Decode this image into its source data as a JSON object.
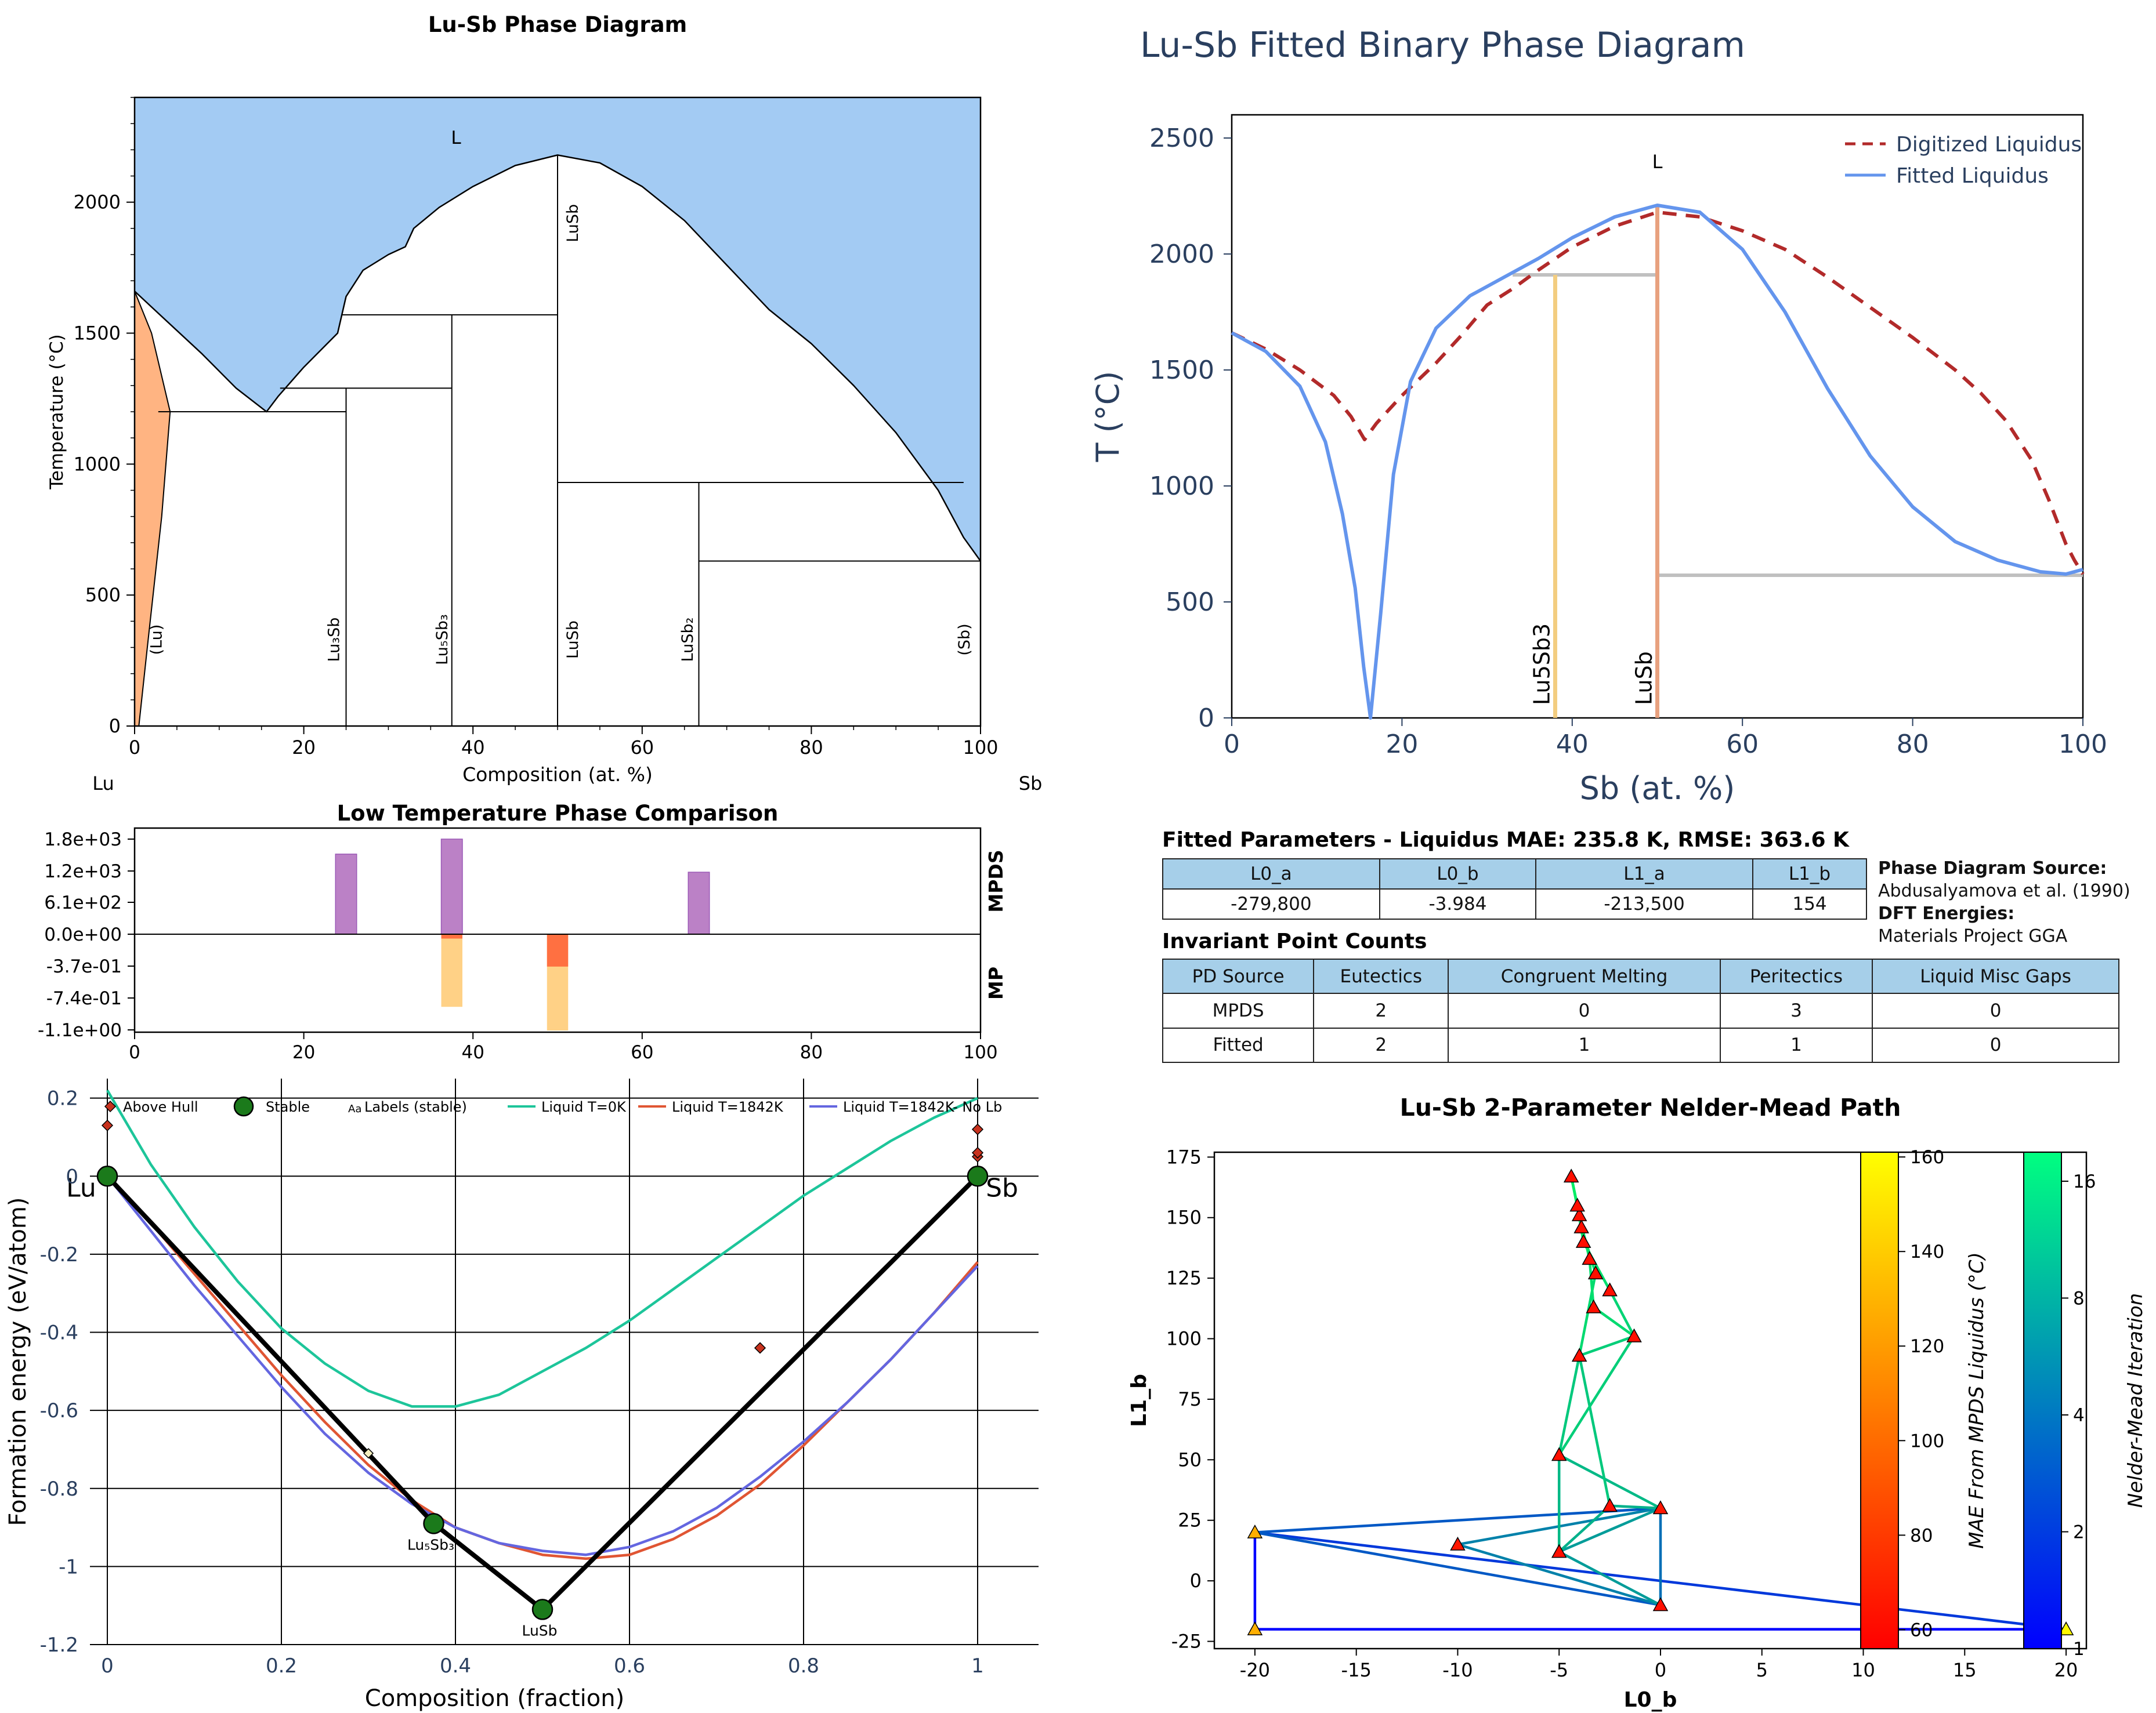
{
  "chart_data": [
    {
      "id": "phase_diagram",
      "type": "diagram",
      "title": "Lu-Sb Phase Diagram",
      "xlabel": "Composition (at. %)",
      "ylabel": "Temperature (°C)",
      "xlim": [
        0,
        100
      ],
      "ylim": [
        0,
        2400
      ],
      "x_ticks": [
        0,
        20,
        40,
        60,
        80,
        100
      ],
      "y_ticks": [
        0,
        500,
        1000,
        1500,
        2000
      ],
      "left_element": "Lu",
      "right_element": "Sb",
      "liquid_label": "L",
      "liquid_color": "#a3cbf3",
      "solid_solution_color": "#ffb482",
      "liquidus": [
        [
          0,
          1660
        ],
        [
          4,
          1540
        ],
        [
          8,
          1420
        ],
        [
          12,
          1290
        ],
        [
          15.6,
          1200
        ],
        [
          17,
          1260
        ],
        [
          20,
          1370
        ],
        [
          24,
          1500
        ],
        [
          24.5,
          1570
        ],
        [
          25,
          1640
        ],
        [
          27,
          1740
        ],
        [
          30,
          1800
        ],
        [
          32,
          1830
        ],
        [
          33,
          1900
        ],
        [
          36,
          1980
        ],
        [
          40,
          2060
        ],
        [
          45,
          2140
        ],
        [
          50,
          2180
        ],
        [
          55,
          2150
        ],
        [
          60,
          2060
        ],
        [
          65,
          1930
        ],
        [
          70,
          1760
        ],
        [
          75,
          1590
        ],
        [
          80,
          1460
        ],
        [
          85,
          1300
        ],
        [
          90,
          1120
        ],
        [
          95,
          900
        ],
        [
          98,
          720
        ],
        [
          100,
          630
        ]
      ],
      "phase_labels": [
        {
          "text": "(Lu)",
          "x": 2.5,
          "y": 330
        },
        {
          "text": "Lu3Sb",
          "x": 23.5,
          "y": 330
        },
        {
          "text": "Lu5Sb3",
          "x": 36.3,
          "y": 330
        },
        {
          "text": "LuSb",
          "x": 51.7,
          "y": 330
        },
        {
          "text": "LuSb2",
          "x": 65.3,
          "y": 330
        },
        {
          "text": "(Sb)",
          "x": 98,
          "y": 330
        },
        {
          "text": "LuSb",
          "x": 51.7,
          "y": 1920
        }
      ],
      "lines": {
        "verticals": [
          [
            25,
            0,
            1290
          ],
          [
            37.5,
            0,
            1570
          ],
          [
            50,
            0,
            2180
          ],
          [
            66.7,
            0,
            930
          ]
        ],
        "horizontals": [
          [
            2.8,
            25,
            1200
          ],
          [
            17.2,
            37.5,
            1290
          ],
          [
            24.5,
            50,
            1570
          ],
          [
            50,
            98,
            930
          ],
          [
            66.7,
            100,
            630
          ]
        ]
      }
    },
    {
      "id": "fitted_phase_diagram",
      "type": "line",
      "title": "Lu-Sb Fitted Binary Phase Diagram",
      "xlabel": "Sb (at. %)",
      "ylabel": "T (°C)",
      "xlim": [
        0,
        100
      ],
      "ylim": [
        0,
        2600
      ],
      "x_ticks": [
        0,
        20,
        40,
        60,
        80,
        100
      ],
      "y_ticks": [
        0,
        500,
        1000,
        1500,
        2000,
        2500
      ],
      "liquid_label": "L",
      "legend_position": "top-right",
      "series": [
        {
          "name": "Digitized Liquidus",
          "style": "dashed",
          "color": "#b22a2a",
          "x": [
            0,
            4,
            8,
            12,
            14,
            15.6,
            17,
            20,
            24,
            27,
            30,
            33,
            36,
            40,
            45,
            50,
            55,
            60,
            65,
            70,
            75,
            80,
            85,
            88,
            91,
            94,
            96,
            98,
            99,
            100
          ],
          "y": [
            1660,
            1590,
            1500,
            1390,
            1300,
            1200,
            1270,
            1390,
            1530,
            1650,
            1780,
            1850,
            1930,
            2030,
            2120,
            2180,
            2160,
            2100,
            2020,
            1900,
            1770,
            1640,
            1500,
            1400,
            1280,
            1110,
            940,
            750,
            680,
            620
          ]
        },
        {
          "name": "Fitted Liquidus",
          "style": "solid",
          "color": "#6495ed",
          "x": [
            0,
            4,
            8,
            11,
            13,
            14.5,
            15.5,
            16.3,
            17.5,
            19,
            21,
            24,
            28,
            32,
            36,
            40,
            45,
            50,
            55,
            60,
            65,
            70,
            75,
            80,
            85,
            90,
            95,
            98,
            100
          ],
          "y": [
            1660,
            1580,
            1430,
            1190,
            880,
            560,
            220,
            0,
            450,
            1050,
            1450,
            1680,
            1820,
            1900,
            1980,
            2070,
            2160,
            2210,
            2180,
            2020,
            1750,
            1420,
            1130,
            910,
            760,
            680,
            630,
            620,
            640
          ]
        }
      ],
      "compound_lines": [
        {
          "name": "Lu5Sb3",
          "x": 38,
          "ymin": 0,
          "ymax": 1910,
          "color": "#f3cd80"
        },
        {
          "name": "LuSb",
          "x": 50,
          "ymin": 0,
          "ymax": 2210,
          "color": "#e8a17f"
        }
      ],
      "tie_lines": [
        [
          33,
          50,
          1910
        ],
        [
          50,
          100,
          615
        ]
      ],
      "tie_line_color": "#c0c0c0"
    },
    {
      "id": "low_temp_comparison",
      "type": "bar",
      "title": "Low Temperature Phase Comparison",
      "xlim": [
        0,
        100
      ],
      "x_ticks": [
        0,
        20,
        40,
        60,
        80,
        100
      ],
      "y_tick_labels": [
        "1.8e+03",
        "1.2e+03",
        "6.1e+02",
        "0.0e+00",
        "-3.7e-01",
        "-7.4e-01",
        "-1.1e+00"
      ],
      "upper_label": "MPDS",
      "lower_label": "MP",
      "upper_max": 1840,
      "lower_min": -1.1,
      "upper_bars": [
        {
          "x": 25,
          "value": 1550,
          "color": "#b77ac3"
        },
        {
          "x": 37.5,
          "value": 1840,
          "color": "#b77ac3"
        },
        {
          "x": 66.7,
          "value": 1200,
          "color": "#b77ac3"
        }
      ],
      "lower_bars": [
        {
          "x": 37.5,
          "value": -0.05,
          "color": "#ff6a3d"
        },
        {
          "x": 37.5,
          "value": -0.83,
          "color": "#ffcf7f"
        },
        {
          "x": 50,
          "value": -0.37,
          "color": "#ff6a3d"
        },
        {
          "x": 50,
          "value": -1.1,
          "color": "#ffcf7f"
        }
      ]
    },
    {
      "id": "formation_energy",
      "type": "scatter",
      "xlabel": "Composition (fraction)",
      "ylabel": "Formation energy (eV/atom)",
      "xlim": [
        -0.02,
        1.07
      ],
      "ylim": [
        -1.2,
        0.25
      ],
      "x_ticks": [
        0,
        0.2,
        0.4,
        0.6,
        0.8,
        1
      ],
      "y_ticks": [
        0.2,
        0,
        -0.2,
        -0.4,
        -0.6,
        -0.8,
        -1,
        -1.2
      ],
      "legend": [
        "Above Hull",
        "Stable",
        "Labels (stable)",
        "Liquid T=0K",
        "Liquid T=1842K",
        "Liquid T=1842K- No Lb"
      ],
      "legend_glyph": "Aa",
      "end_labels": [
        "Lu",
        "Sb"
      ],
      "stable": [
        {
          "x": 0,
          "y": 0,
          "label": ""
        },
        {
          "x": 0.375,
          "y": -0.89,
          "label": "Lu5Sb3"
        },
        {
          "x": 0.5,
          "y": -1.11,
          "label": "LuSb"
        },
        {
          "x": 1,
          "y": 0,
          "label": ""
        }
      ],
      "above_hull": [
        [
          0,
          0.13
        ],
        [
          0.75,
          -0.44
        ],
        [
          1,
          0.12
        ],
        [
          1,
          0.05
        ],
        [
          1,
          0.06
        ]
      ],
      "open_points": [
        [
          0,
          0
        ],
        [
          0.3,
          -0.71
        ]
      ],
      "liquid_curves": [
        {
          "name": "Liquid T=0K",
          "color": "#1dc59a",
          "x": [
            0,
            0.05,
            0.1,
            0.15,
            0.2,
            0.25,
            0.3,
            0.35,
            0.4,
            0.45,
            0.5,
            0.55,
            0.6,
            0.65,
            0.7,
            0.75,
            0.8,
            0.85,
            0.9,
            0.95,
            1
          ],
          "y": [
            0.22,
            0.03,
            -0.13,
            -0.27,
            -0.39,
            -0.48,
            -0.55,
            -0.59,
            -0.59,
            -0.56,
            -0.5,
            -0.44,
            -0.37,
            -0.29,
            -0.21,
            -0.13,
            -0.05,
            0.02,
            0.09,
            0.15,
            0.2
          ]
        },
        {
          "name": "Liquid T=1842K",
          "color": "#e05533",
          "x": [
            0,
            0.05,
            0.1,
            0.15,
            0.2,
            0.25,
            0.3,
            0.35,
            0.4,
            0.45,
            0.5,
            0.55,
            0.6,
            0.65,
            0.7,
            0.75,
            0.8,
            0.85,
            0.9,
            0.95,
            1
          ],
          "y": [
            0,
            -0.12,
            -0.25,
            -0.38,
            -0.51,
            -0.63,
            -0.74,
            -0.83,
            -0.9,
            -0.94,
            -0.97,
            -0.98,
            -0.97,
            -0.93,
            -0.87,
            -0.79,
            -0.69,
            -0.58,
            -0.47,
            -0.35,
            -0.22
          ]
        },
        {
          "name": "Liquid T=1842K- No Lb",
          "color": "#6466e0",
          "x": [
            0,
            0.05,
            0.1,
            0.15,
            0.2,
            0.25,
            0.3,
            0.35,
            0.4,
            0.45,
            0.5,
            0.55,
            0.6,
            0.65,
            0.7,
            0.75,
            0.8,
            0.85,
            0.9,
            0.95,
            1
          ],
          "y": [
            0,
            -0.14,
            -0.28,
            -0.41,
            -0.54,
            -0.66,
            -0.76,
            -0.84,
            -0.9,
            -0.94,
            -0.96,
            -0.97,
            -0.95,
            -0.91,
            -0.85,
            -0.77,
            -0.68,
            -0.58,
            -0.47,
            -0.35,
            -0.23
          ]
        }
      ]
    },
    {
      "id": "nelder_mead_path",
      "type": "scatter",
      "title": "Lu-Sb 2-Parameter Nelder-Mead Path",
      "xlabel": "L0_b",
      "ylabel": "L1_b",
      "xlim": [
        -22,
        21
      ],
      "ylim": [
        -28,
        177
      ],
      "x_ticks": [
        -20,
        -15,
        -10,
        -5,
        0,
        5,
        10,
        15,
        20
      ],
      "y_ticks": [
        -25,
        0,
        25,
        50,
        75,
        100,
        125,
        150,
        175
      ],
      "points": [
        {
          "x": -20,
          "y": 20,
          "mae": 128
        },
        {
          "x": -20,
          "y": -20,
          "mae": 128
        },
        {
          "x": 20,
          "y": -20,
          "mae": 158
        },
        {
          "x": 0,
          "y": 30,
          "mae": 65
        },
        {
          "x": 0,
          "y": -10,
          "mae": 62
        },
        {
          "x": -10,
          "y": 15,
          "mae": 65
        },
        {
          "x": -5,
          "y": 12,
          "mae": 62
        },
        {
          "x": -2.5,
          "y": 31,
          "mae": 62
        },
        {
          "x": -5,
          "y": 52,
          "mae": 62
        },
        {
          "x": -4,
          "y": 93,
          "mae": 62
        },
        {
          "x": -1.3,
          "y": 101,
          "mae": 62
        },
        {
          "x": -2.5,
          "y": 120,
          "mae": 62
        },
        {
          "x": -3.3,
          "y": 113,
          "mae": 62
        },
        {
          "x": -3.2,
          "y": 127,
          "mae": 62
        },
        {
          "x": -3.5,
          "y": 133,
          "mae": 62
        },
        {
          "x": -3.8,
          "y": 140,
          "mae": 62
        },
        {
          "x": -3.9,
          "y": 146,
          "mae": 62
        },
        {
          "x": -4.0,
          "y": 151,
          "mae": 62
        },
        {
          "x": -4.1,
          "y": 155,
          "mae": 62
        },
        {
          "x": -4.4,
          "y": 167,
          "mae": 62
        }
      ],
      "path_segments": [
        [
          -20,
          20,
          -20,
          -20,
          0
        ],
        [
          -20,
          -20,
          20,
          -20,
          0
        ],
        [
          -20,
          20,
          20,
          -20,
          1
        ],
        [
          -20,
          20,
          0,
          30,
          2
        ],
        [
          -20,
          20,
          0,
          -10,
          2
        ],
        [
          0,
          30,
          0,
          -10,
          3
        ],
        [
          -10,
          15,
          0,
          30,
          4
        ],
        [
          -10,
          15,
          0,
          -10,
          4
        ],
        [
          -5,
          12,
          0,
          30,
          6
        ],
        [
          -5,
          12,
          0,
          -10,
          6
        ],
        [
          -5,
          12,
          -2.5,
          31,
          8
        ],
        [
          -2.5,
          31,
          0,
          30,
          8
        ],
        [
          -5,
          52,
          0,
          30,
          9
        ],
        [
          -5,
          52,
          -5,
          12,
          9
        ],
        [
          -4,
          93,
          -2.5,
          31,
          11
        ],
        [
          -4,
          93,
          -5,
          52,
          11
        ],
        [
          -1.3,
          101,
          -5,
          52,
          12
        ],
        [
          -1.3,
          101,
          -4,
          93,
          12
        ],
        [
          -2.5,
          120,
          -1.3,
          101,
          13
        ],
        [
          -3.3,
          113,
          -1.3,
          101,
          14
        ],
        [
          -3.2,
          127,
          -4,
          93,
          14
        ],
        [
          -3.5,
          133,
          -3.3,
          113,
          15
        ],
        [
          -3.8,
          140,
          -2.5,
          120,
          15
        ],
        [
          -3.9,
          146,
          -3.2,
          127,
          16
        ],
        [
          -4.0,
          151,
          -3.5,
          133,
          16
        ],
        [
          -4.1,
          155,
          -3.8,
          140,
          17
        ],
        [
          -4.4,
          167,
          -3.9,
          146,
          17
        ],
        [
          -4.4,
          167,
          -4.1,
          155,
          18
        ],
        [
          -4.4,
          167,
          -4.0,
          151,
          18
        ]
      ],
      "mae_colorbar": {
        "label": "MAE From MPDS Liquidus (°C)",
        "min": 56,
        "max": 161,
        "ticks": [
          60,
          80,
          100,
          120,
          140,
          160
        ]
      },
      "iteration_colorbar": {
        "label": "Nelder-Mead Iteration",
        "min": 1,
        "max": 19,
        "tick_values": [
          1,
          2,
          4,
          8,
          16
        ],
        "tick_labels": [
          "1",
          "2",
          "4",
          "8",
          "16"
        ]
      }
    }
  ],
  "fitted_params": {
    "title": "Fitted Parameters - Liquidus MAE: 235.8 K, RMSE: 363.6 K",
    "headers": [
      "L0_a",
      "L0_b",
      "L1_a",
      "L1_b"
    ],
    "values": [
      "-279,800",
      "-3.984",
      "-213,500",
      "154"
    ]
  },
  "source_info": {
    "pd_source_label": "Phase Diagram Source:",
    "pd_source_value": "Abdusalyamova et al. (1990)",
    "dft_label": "DFT Energies:",
    "dft_value": "Materials Project GGA"
  },
  "invariants": {
    "title": "Invariant Point Counts",
    "headers": [
      "PD Source",
      "Eutectics",
      "Congruent Melting",
      "Peritectics",
      "Liquid Misc Gaps"
    ],
    "rows": [
      [
        "MPDS",
        "2",
        "0",
        "3",
        "0"
      ],
      [
        "Fitted",
        "2",
        "1",
        "1",
        "0"
      ]
    ]
  }
}
